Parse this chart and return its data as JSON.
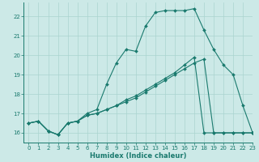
{
  "xlabel": "Humidex (Indice chaleur)",
  "bg_color": "#cce9e7",
  "grid_color": "#aad4d0",
  "line_color": "#1a7a6e",
  "xlim": [
    -0.5,
    23
  ],
  "ylim": [
    15.5,
    22.7
  ],
  "yticks": [
    16,
    17,
    18,
    19,
    20,
    21,
    22
  ],
  "xticks": [
    0,
    1,
    2,
    3,
    4,
    5,
    6,
    7,
    8,
    9,
    10,
    11,
    12,
    13,
    14,
    15,
    16,
    17,
    18,
    19,
    20,
    21,
    22,
    23
  ],
  "line1_x": [
    0,
    1,
    2,
    3,
    4,
    5,
    6,
    7,
    8,
    9,
    10,
    11,
    12,
    13,
    14,
    15,
    16,
    17,
    18,
    19,
    20,
    21,
    22,
    23
  ],
  "line1_y": [
    16.5,
    16.6,
    16.1,
    15.9,
    16.5,
    16.6,
    17.0,
    17.2,
    18.5,
    19.6,
    20.3,
    20.2,
    21.5,
    22.2,
    22.3,
    22.3,
    22.3,
    22.4,
    21.3,
    20.3,
    19.5,
    19.0,
    17.4,
    16.0
  ],
  "line2_x": [
    0,
    1,
    2,
    3,
    4,
    5,
    6,
    7,
    8,
    9,
    10,
    11,
    12,
    13,
    14,
    15,
    16,
    17,
    18,
    19,
    20,
    21,
    22,
    23
  ],
  "line2_y": [
    16.5,
    16.6,
    16.1,
    15.9,
    16.5,
    16.6,
    16.9,
    17.0,
    17.2,
    17.4,
    17.6,
    17.8,
    18.1,
    18.4,
    18.7,
    19.0,
    19.3,
    19.6,
    19.8,
    16.0,
    16.0,
    16.0,
    16.0,
    16.0
  ],
  "line3_x": [
    0,
    1,
    2,
    3,
    4,
    5,
    6,
    7,
    8,
    9,
    10,
    11,
    12,
    13,
    14,
    15,
    16,
    17,
    18,
    19,
    20,
    21,
    22,
    23
  ],
  "line3_y": [
    16.5,
    16.6,
    16.1,
    15.9,
    16.5,
    16.6,
    16.9,
    17.0,
    17.2,
    17.4,
    17.7,
    17.9,
    18.2,
    18.5,
    18.8,
    19.1,
    19.5,
    19.9,
    16.0,
    16.0,
    16.0,
    16.0,
    16.0,
    16.0
  ]
}
